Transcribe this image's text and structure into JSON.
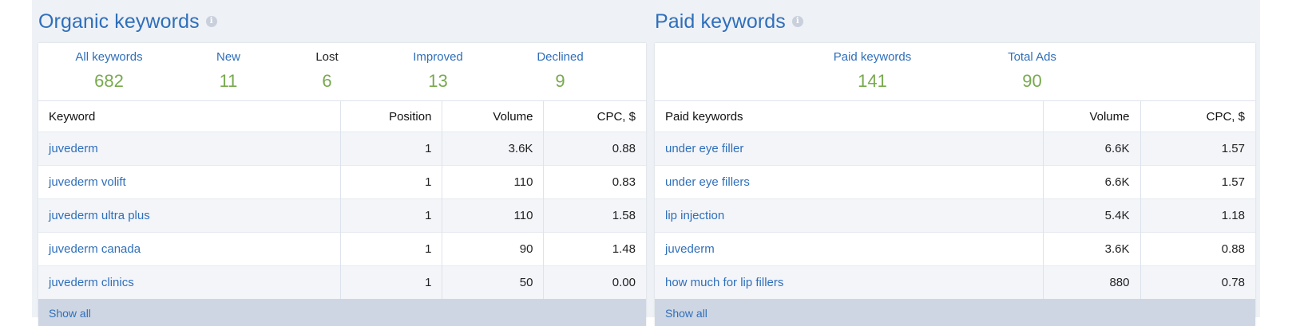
{
  "organic": {
    "title": "Organic keywords",
    "stats": [
      {
        "label": "All keywords",
        "value": "682",
        "link": true
      },
      {
        "label": "New",
        "value": "11",
        "link": true
      },
      {
        "label": "Lost",
        "value": "6",
        "link": false
      },
      {
        "label": "Improved",
        "value": "13",
        "link": true
      },
      {
        "label": "Declined",
        "value": "9",
        "link": true
      }
    ],
    "columns": [
      "Keyword",
      "Position",
      "Volume",
      "CPC, $"
    ],
    "rows": [
      [
        "juvederm",
        "1",
        "3.6K",
        "0.88"
      ],
      [
        "juvederm volift",
        "1",
        "110",
        "0.83"
      ],
      [
        "juvederm ultra plus",
        "1",
        "110",
        "1.58"
      ],
      [
        "juvederm canada",
        "1",
        "90",
        "1.48"
      ],
      [
        "juvederm clinics",
        "1",
        "50",
        "0.00"
      ]
    ],
    "show_all": "Show all"
  },
  "paid": {
    "title": "Paid keywords",
    "stats": [
      {
        "label": "Paid keywords",
        "value": "141",
        "link": true
      },
      {
        "label": "Total Ads",
        "value": "90",
        "link": true
      }
    ],
    "columns": [
      "Paid keywords",
      "Volume",
      "CPC, $"
    ],
    "rows": [
      [
        "under eye filler",
        "6.6K",
        "1.57"
      ],
      [
        "under eye fillers",
        "6.6K",
        "1.57"
      ],
      [
        "lip injection",
        "5.4K",
        "1.18"
      ],
      [
        "juvederm",
        "3.6K",
        "0.88"
      ],
      [
        "how much for lip fillers",
        "880",
        "0.78"
      ]
    ],
    "show_all": "Show all"
  },
  "info_icon": "info-icon",
  "colors": {
    "link": "#2f6fba",
    "value": "#78a94e",
    "background": "#eef1f6"
  }
}
